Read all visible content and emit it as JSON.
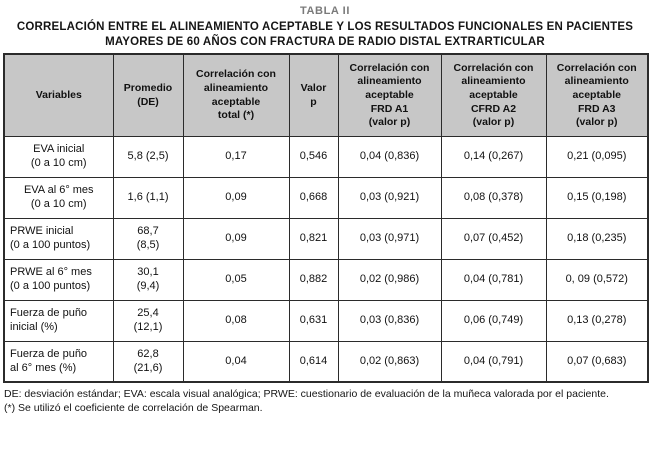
{
  "title": {
    "table_number": "TABLA II",
    "line1": "CORRELACIÓN ENTRE EL ALINEAMIENTO ACEPTABLE Y LOS RESULTADOS FUNCIONALES EN PACIENTES",
    "line2": "MAYORES DE 60 AÑOS CON FRACTURA DE RADIO DISTAL EXTRARTICULAR"
  },
  "table": {
    "columns": [
      "Variables",
      "Promedio\n(DE)",
      "Correlación con\nalineamiento\naceptable\ntotal (*)",
      "Valor\np",
      "Correlación con\nalineamiento\naceptable\nFRD A1\n(valor p)",
      "Correlación con\nalineamiento\naceptable\nCFRD A2\n(valor p)",
      "Correlación con\nalineamiento\naceptable\nFRD A3\n(valor p)"
    ],
    "rows": [
      [
        "EVA inicial\n(0 a 10 cm)",
        "5,8 (2,5)",
        "0,17",
        "0,546",
        "0,04 (0,836)",
        "0,14 (0,267)",
        "0,21 (0,095)"
      ],
      [
        "EVA al 6° mes\n(0 a 10 cm)",
        "1,6 (1,1)",
        "0,09",
        "0,668",
        "0,03 (0,921)",
        "0,08 (0,378)",
        "0,15 (0,198)"
      ],
      [
        "PRWE inicial\n(0 a 100 puntos)",
        "68,7\n(8,5)",
        "0,09",
        "0,821",
        "0,03 (0,971)",
        "0,07 (0,452)",
        "0,18 (0,235)"
      ],
      [
        "PRWE al 6° mes\n(0 a 100 puntos)",
        "30,1\n(9,4)",
        "0,05",
        "0,882",
        "0,02 (0,986)",
        "0,04 (0,781)",
        "0, 09 (0,572)"
      ],
      [
        "Fuerza de puño\ninicial (%)",
        "25,4\n(12,1)",
        "0,08",
        "0,631",
        "0,03 (0,836)",
        "0,06 (0,749)",
        "0,13 (0,278)"
      ],
      [
        "Fuerza de puño\nal 6° mes (%)",
        "62,8\n(21,6)",
        "0,04",
        "0,614",
        "0,02 (0,863)",
        "0,04 (0,791)",
        "0,07 (0,683)"
      ]
    ]
  },
  "footnotes": [
    "DE: desviación estándar; EVA: escala visual analógica; PRWE: cuestionario de evaluación de la muñeca valorada por el paciente.",
    "(*) Se utilizó el coeficiente de correlación de Spearman."
  ],
  "colors": {
    "header_background": "#c7c7c7",
    "border": "#2b2b2b",
    "table_number_gray": "#7a7a7a",
    "text": "#111111"
  }
}
